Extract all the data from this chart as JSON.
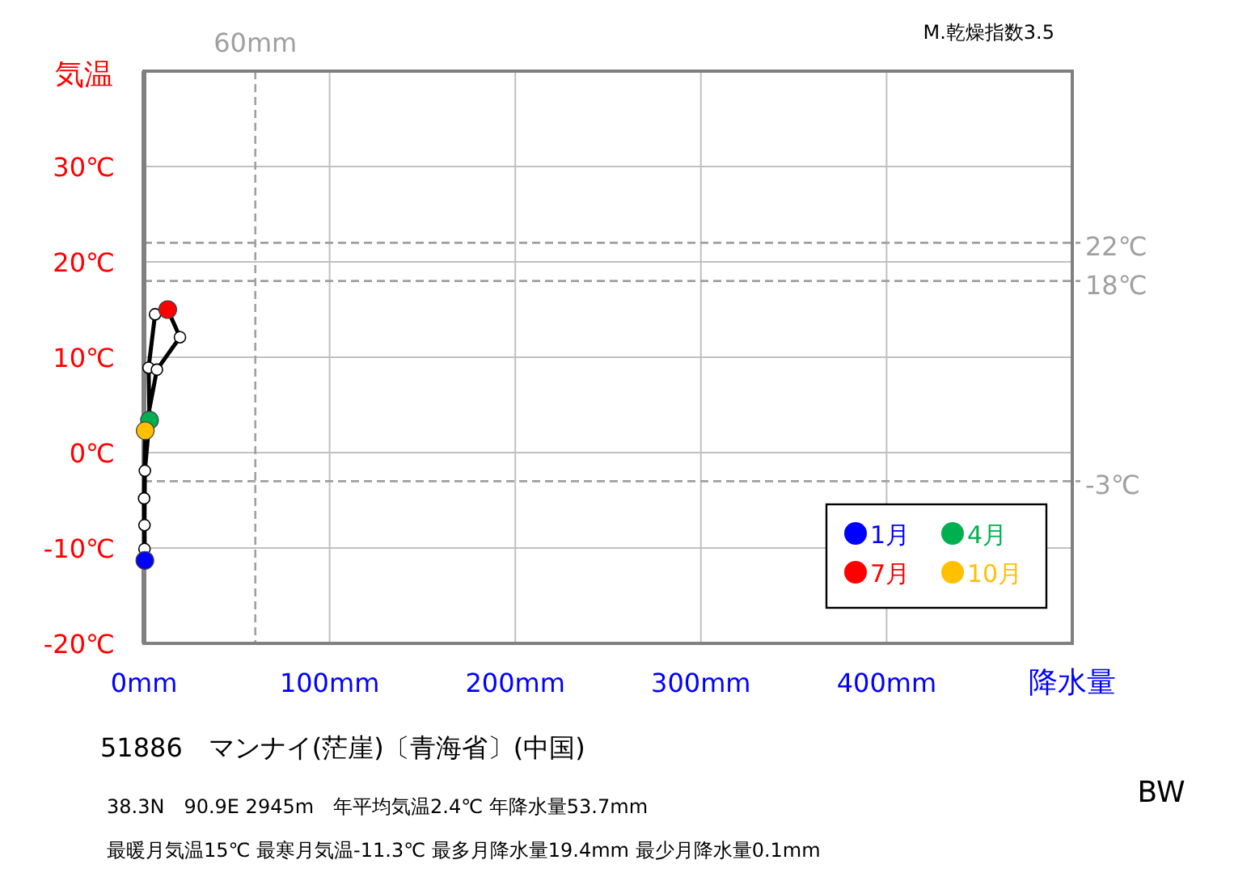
{
  "chart_data": {
    "type": "line",
    "xlabel": "降水量",
    "ylabel": "気温",
    "xlim": [
      0,
      500
    ],
    "ylim": [
      -20,
      40
    ],
    "xticks": [
      {
        "value": 0,
        "label": "0mm"
      },
      {
        "value": 100,
        "label": "100mm"
      },
      {
        "value": 200,
        "label": "200mm"
      },
      {
        "value": 300,
        "label": "300mm"
      },
      {
        "value": 400,
        "label": "400mm"
      }
    ],
    "yticks": [
      {
        "value": -20,
        "label": "-20℃"
      },
      {
        "value": -10,
        "label": "-10℃"
      },
      {
        "value": 0,
        "label": "0℃"
      },
      {
        "value": 10,
        "label": "10℃"
      },
      {
        "value": 20,
        "label": "20℃"
      },
      {
        "value": 30,
        "label": "30℃"
      }
    ],
    "grid": true,
    "legend": "bottom right",
    "marker": "circle",
    "line_style": "solid",
    "series": [
      {
        "type": "line",
        "color": "#000000",
        "colors": [
          "#ffffff",
          "#ffffff",
          "#ffffff",
          "#ffffff",
          "#ffffff",
          "#ffffff",
          "#ffffff",
          "#ffffff",
          "#ffffff",
          "#ffffff",
          "#ffffff",
          "#ffffff"
        ],
        "x": [
          0.5,
          0.3,
          0.5,
          3,
          2.5,
          6,
          12.8,
          19.4,
          7,
          0.7,
          0.1,
          0.3
        ],
        "values": [
          -11.3,
          -7.6,
          -1.9,
          3.4,
          8.9,
          14.5,
          15,
          12.1,
          8.7,
          2.3,
          -4.8,
          -10.1
        ]
      },
      {
        "type": "scatter",
        "name": "1月",
        "color": "#0000ff",
        "x": [
          0.5
        ],
        "values": [
          -11.3
        ]
      },
      {
        "type": "scatter",
        "name": "4月",
        "color": "#00b050",
        "x": [
          3
        ],
        "values": [
          3.4
        ]
      },
      {
        "type": "scatter",
        "name": "7月",
        "color": "#ff0000",
        "x": [
          12.8
        ],
        "values": [
          15
        ]
      },
      {
        "type": "scatter",
        "name": "10月",
        "color": "#ffc000",
        "x": [
          0.7
        ],
        "values": [
          2.3
        ]
      }
    ],
    "ref_lines": [
      {
        "axis": "x",
        "value": 60,
        "label": "60mm",
        "color": "#a0a0a0",
        "line_style": "dashed"
      },
      {
        "axis": "y",
        "value": 22,
        "label": "22℃",
        "color": "#a0a0a0",
        "line_style": "dashed"
      },
      {
        "axis": "y",
        "value": 18,
        "label": "18℃",
        "color": "#a0a0a0",
        "line_style": "dashed"
      },
      {
        "axis": "y",
        "value": -3,
        "label": "-3℃",
        "color": "#a0a0a0",
        "line_style": "dashed"
      }
    ],
    "annotations": [
      "M.乾燥指数3.5",
      "51886　マンナイ(茫崖)〔青海省〕(中国)",
      "38.3N　90.9E 2945m　年平均気温2.4℃ 年降水量53.7mm",
      "最暖月気温15℃ 最寒月気温-11.3℃ 最多月降水量19.4mm 最少月降水量0.1mm",
      "BW"
    ]
  }
}
